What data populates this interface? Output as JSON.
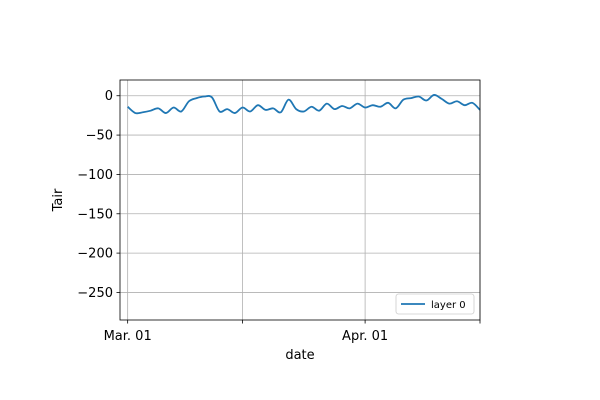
{
  "chart_data": {
    "type": "line",
    "title": "",
    "xlabel": "date",
    "ylabel": "Tair",
    "x_axis": "date",
    "xlim": [
      "2021-02-28",
      "2021-04-16"
    ],
    "ylim": [
      -285,
      20
    ],
    "x_ticks": [
      {
        "date": "2021-03-01",
        "label": "Mar. 01"
      },
      {
        "date": "2021-03-16",
        "label": ""
      },
      {
        "date": "2021-04-01",
        "label": "Apr. 01"
      },
      {
        "date": "2021-04-16",
        "label": ""
      }
    ],
    "y_ticks": [
      0,
      -50,
      -100,
      -150,
      -200,
      -250
    ],
    "y_tick_labels": [
      "0",
      "−50",
      "−100",
      "−150",
      "−200",
      "−250"
    ],
    "grid": true,
    "legend_position": "lower-right",
    "series": [
      {
        "name": "layer 0",
        "color": "#1f77b4",
        "points": [
          [
            "2021-03-01",
            -14
          ],
          [
            "2021-03-02",
            -22
          ],
          [
            "2021-03-03",
            -21
          ],
          [
            "2021-03-04",
            -19
          ],
          [
            "2021-03-05",
            -16
          ],
          [
            "2021-03-06",
            -22
          ],
          [
            "2021-03-07",
            -15
          ],
          [
            "2021-03-08",
            -20
          ],
          [
            "2021-03-09",
            -7
          ],
          [
            "2021-03-10",
            -3
          ],
          [
            "2021-03-11",
            -1
          ],
          [
            "2021-03-12",
            -2
          ],
          [
            "2021-03-13",
            -20
          ],
          [
            "2021-03-14",
            -17
          ],
          [
            "2021-03-15",
            -22
          ],
          [
            "2021-03-16",
            -15
          ],
          [
            "2021-03-17",
            -20
          ],
          [
            "2021-03-18",
            -12
          ],
          [
            "2021-03-19",
            -18
          ],
          [
            "2021-03-20",
            -16
          ],
          [
            "2021-03-21",
            -21
          ],
          [
            "2021-03-22",
            -5
          ],
          [
            "2021-03-23",
            -17
          ],
          [
            "2021-03-24",
            -20
          ],
          [
            "2021-03-25",
            -14
          ],
          [
            "2021-03-26",
            -19
          ],
          [
            "2021-03-27",
            -10
          ],
          [
            "2021-03-28",
            -17
          ],
          [
            "2021-03-29",
            -13
          ],
          [
            "2021-03-30",
            -16
          ],
          [
            "2021-03-31",
            -10
          ],
          [
            "2021-04-01",
            -15
          ],
          [
            "2021-04-02",
            -12
          ],
          [
            "2021-04-03",
            -14
          ],
          [
            "2021-04-04",
            -9
          ],
          [
            "2021-04-05",
            -16
          ],
          [
            "2021-04-06",
            -5
          ],
          [
            "2021-04-07",
            -3
          ],
          [
            "2021-04-08",
            -1
          ],
          [
            "2021-04-09",
            -6
          ],
          [
            "2021-04-10",
            1
          ],
          [
            "2021-04-11",
            -4
          ],
          [
            "2021-04-12",
            -10
          ],
          [
            "2021-04-13",
            -7
          ],
          [
            "2021-04-14",
            -12
          ],
          [
            "2021-04-15",
            -9
          ],
          [
            "2021-04-16",
            -18
          ]
        ]
      }
    ]
  }
}
